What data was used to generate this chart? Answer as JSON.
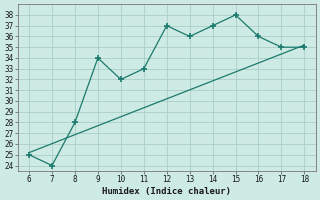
{
  "x": [
    6,
    7,
    8,
    9,
    10,
    11,
    12,
    13,
    14,
    15,
    16,
    17,
    18
  ],
  "y": [
    25,
    24,
    28,
    34,
    32,
    33,
    37,
    36,
    37,
    38,
    36,
    35,
    35
  ],
  "line_color": "#1b7a6d",
  "bg_color": "#cdeae4",
  "grid_color": "#aacfc8",
  "xlabel": "Humidex (Indice chaleur)",
  "ylim": [
    23.5,
    39
  ],
  "xlim": [
    5.5,
    18.5
  ],
  "yticks": [
    24,
    25,
    26,
    27,
    28,
    29,
    30,
    31,
    32,
    33,
    34,
    35,
    36,
    37,
    38
  ],
  "xticks": [
    6,
    7,
    8,
    9,
    10,
    11,
    12,
    13,
    14,
    15,
    16,
    17,
    18
  ],
  "trend_x": [
    6,
    18
  ],
  "trend_y": [
    25.2,
    35.2
  ]
}
